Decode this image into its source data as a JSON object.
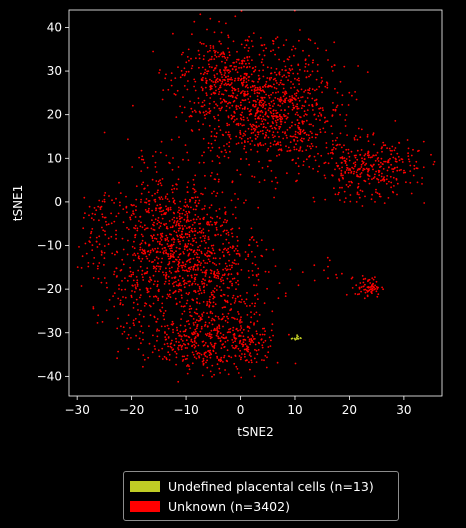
{
  "chart_data": {
    "type": "scatter",
    "title": "",
    "xlabel": "tSNE2",
    "ylabel": "tSNE1",
    "xlim": [
      -31.5,
      37
    ],
    "ylim": [
      -44.5,
      44
    ],
    "xticks": [
      -30,
      -20,
      -10,
      0,
      10,
      20,
      30
    ],
    "yticks": [
      -40,
      -30,
      -20,
      -10,
      0,
      10,
      20,
      30,
      40
    ],
    "grid": false,
    "legend_position": "bottom-center-outside",
    "background": "#000000",
    "series": [
      {
        "name": "Undefined placental cells (n=13)",
        "color": "#bfcc25",
        "count": 13,
        "clusters": [
          {
            "center": [
              10.2,
              -31.2
            ],
            "spread": [
              0.45,
              0.3
            ],
            "count": 13
          }
        ]
      },
      {
        "name": "Unknown (n=3402)",
        "color": "#ff0000",
        "count": 3402,
        "clusters": [
          {
            "center": [
              3,
              23
            ],
            "spread": [
              7,
              7
            ],
            "count": 850
          },
          {
            "center": [
              -4,
              30
            ],
            "spread": [
              4,
              4
            ],
            "count": 160
          },
          {
            "center": [
              10,
              17
            ],
            "spread": [
              4.5,
              5
            ],
            "count": 210
          },
          {
            "center": [
              23,
              7
            ],
            "spread": [
              4.5,
              3.5
            ],
            "count": 290
          },
          {
            "center": [
              30,
              10
            ],
            "spread": [
              2.5,
              2.5
            ],
            "count": 40
          },
          {
            "center": [
              -12,
              -8
            ],
            "spread": [
              5.5,
              7.5
            ],
            "count": 780
          },
          {
            "center": [
              -5,
              -18
            ],
            "spread": [
              6,
              5.5
            ],
            "count": 330
          },
          {
            "center": [
              -7,
              -31
            ],
            "spread": [
              5,
              4
            ],
            "count": 380
          },
          {
            "center": [
              1,
              -33
            ],
            "spread": [
              3,
              3
            ],
            "count": 110
          },
          {
            "center": [
              -20,
              -24
            ],
            "spread": [
              3,
              6
            ],
            "count": 90
          },
          {
            "center": [
              -27,
              -10
            ],
            "spread": [
              1.5,
              5
            ],
            "count": 50
          },
          {
            "center": [
              -25,
              -2
            ],
            "spread": [
              1.5,
              2
            ],
            "count": 22
          },
          {
            "center": [
              23.5,
              -19.5
            ],
            "spread": [
              1.2,
              1.2
            ],
            "count": 70
          },
          {
            "center": [
              16,
              -16
            ],
            "spread": [
              1.5,
              2
            ],
            "count": 10
          },
          {
            "center": [
              -17,
              9
            ],
            "spread": [
              2,
              2.5
            ],
            "count": 10
          }
        ]
      }
    ]
  }
}
